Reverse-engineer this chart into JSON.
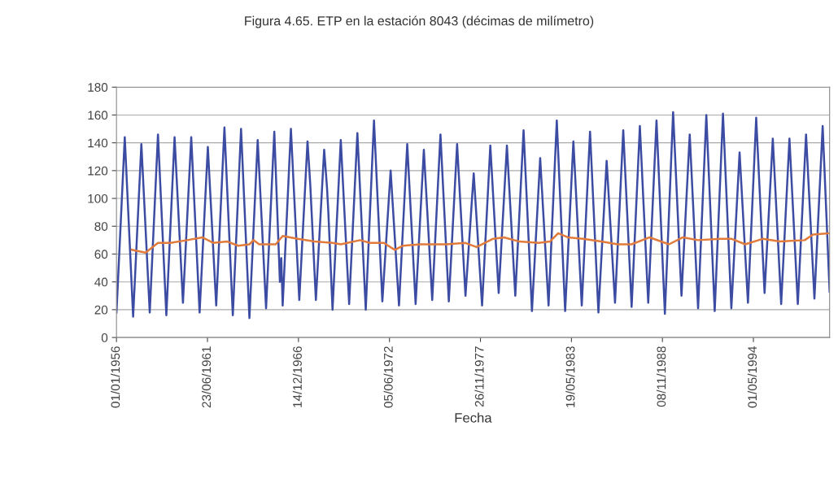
{
  "chart_data": {
    "type": "line",
    "title": "Figura 4.65. ETP en la estación 8043 (décimas de milímetro)",
    "xlabel": "Fecha",
    "ylim": [
      0,
      180
    ],
    "yticks": [
      0,
      20,
      40,
      60,
      80,
      100,
      120,
      140,
      160,
      180
    ],
    "xlim": [
      "1956-01-01",
      "1998-12-01"
    ],
    "xticks": [
      {
        "value": "1956-01-01",
        "label": "01/01/1956"
      },
      {
        "value": "1961-06-23",
        "label": "23/06/1961"
      },
      {
        "value": "1966-12-14",
        "label": "14/12/1966"
      },
      {
        "value": "1972-06-05",
        "label": "05/06/1972"
      },
      {
        "value": "1977-11-26",
        "label": "26/11/1977"
      },
      {
        "value": "1983-05-19",
        "label": "19/05/1983"
      },
      {
        "value": "1988-11-08",
        "label": "08/11/1988"
      },
      {
        "value": "1994-05-01",
        "label": "01/05/1994"
      }
    ],
    "grid": "y",
    "marker": "none",
    "line_style": "solid",
    "series": [
      {
        "color": "#3d4ca3",
        "x": [
          "1956-01",
          "1956-07",
          "1957-01",
          "1957-07",
          "1958-01",
          "1958-07",
          "1959-01",
          "1959-07",
          "1960-01",
          "1960-07",
          "1961-01",
          "1961-07",
          "1962-01",
          "1962-07",
          "1963-01",
          "1963-07",
          "1964-01",
          "1964-07",
          "1965-01",
          "1965-07",
          "1965-11",
          "1965-12",
          "1966-01",
          "1966-07",
          "1967-01",
          "1967-07",
          "1967-09",
          "1968-01",
          "1968-07",
          "1968-09",
          "1968-10",
          "1969-01",
          "1969-07",
          "1970-01",
          "1970-07",
          "1971-01",
          "1971-07",
          "1972-01",
          "1972-07",
          "1973-01",
          "1973-07",
          "1974-01",
          "1974-07",
          "1975-01",
          "1975-07",
          "1976-01",
          "1976-07",
          "1977-01",
          "1977-07",
          "1978-01",
          "1978-07",
          "1979-01",
          "1979-07",
          "1980-01",
          "1980-07",
          "1981-01",
          "1981-07",
          "1982-01",
          "1982-07",
          "1983-01",
          "1983-07",
          "1984-01",
          "1984-07",
          "1985-01",
          "1985-07",
          "1986-01",
          "1986-07",
          "1987-01",
          "1987-07",
          "1988-01",
          "1988-07",
          "1989-01",
          "1989-07",
          "1990-01",
          "1990-07",
          "1991-01",
          "1991-07",
          "1992-01",
          "1992-07",
          "1993-01",
          "1993-07",
          "1994-01",
          "1994-07",
          "1995-01",
          "1995-07",
          "1996-01",
          "1996-07",
          "1997-01",
          "1997-07",
          "1998-01",
          "1998-07",
          "1998-12"
        ],
        "values": [
          18,
          144,
          15,
          139,
          18,
          146,
          16,
          144,
          25,
          144,
          18,
          137,
          23,
          151,
          16,
          150,
          14,
          142,
          21,
          148,
          40,
          57,
          23,
          150,
          27,
          141,
          109,
          27,
          135,
          108,
          90,
          20,
          142,
          24,
          147,
          20,
          156,
          26,
          120,
          23,
          139,
          24,
          135,
          27,
          146,
          26,
          139,
          30,
          118,
          23,
          138,
          32,
          138,
          30,
          149,
          19,
          129,
          23,
          156,
          19,
          141,
          23,
          148,
          18,
          127,
          25,
          149,
          22,
          152,
          25,
          156,
          17,
          162,
          30,
          146,
          21,
          160,
          19,
          161,
          21,
          133,
          25,
          158,
          32,
          143,
          24,
          143,
          24,
          146,
          28,
          152,
          33
        ]
      },
      {
        "color": "#e07b3c",
        "x": [
          "1956-12",
          "1957-10",
          "1958-07",
          "1959-04",
          "1960-04",
          "1961-03",
          "1961-11",
          "1962-09",
          "1963-05",
          "1964-01",
          "1964-04",
          "1964-08",
          "1965-08",
          "1966-01",
          "1966-12",
          "1967-12",
          "1969-01",
          "1969-07",
          "1970-09",
          "1971-04",
          "1972-02",
          "1972-10",
          "1973-04",
          "1974-04",
          "1975-11",
          "1977-01",
          "1977-09",
          "1978-09",
          "1979-05",
          "1980-04",
          "1981-06",
          "1982-02",
          "1982-08",
          "1983-03",
          "1984-02",
          "1985-03",
          "1986-03",
          "1987-01",
          "1988-02",
          "1989-04",
          "1990-02",
          "1991-01",
          "1992-05",
          "1993-01",
          "1993-11",
          "1994-12",
          "1995-12",
          "1997-06",
          "1997-12",
          "1998-12"
        ],
        "values": [
          63,
          61,
          68,
          68,
          70,
          72,
          68,
          69,
          66,
          67,
          70,
          67,
          67,
          73,
          71,
          69,
          68,
          67,
          70,
          68,
          68,
          63,
          66,
          67,
          67,
          68,
          65,
          71,
          72,
          69,
          68,
          69,
          75,
          72,
          71,
          69,
          67,
          67,
          72,
          67,
          72,
          70,
          71,
          71,
          67,
          71,
          69,
          70,
          74,
          75
        ]
      }
    ]
  }
}
